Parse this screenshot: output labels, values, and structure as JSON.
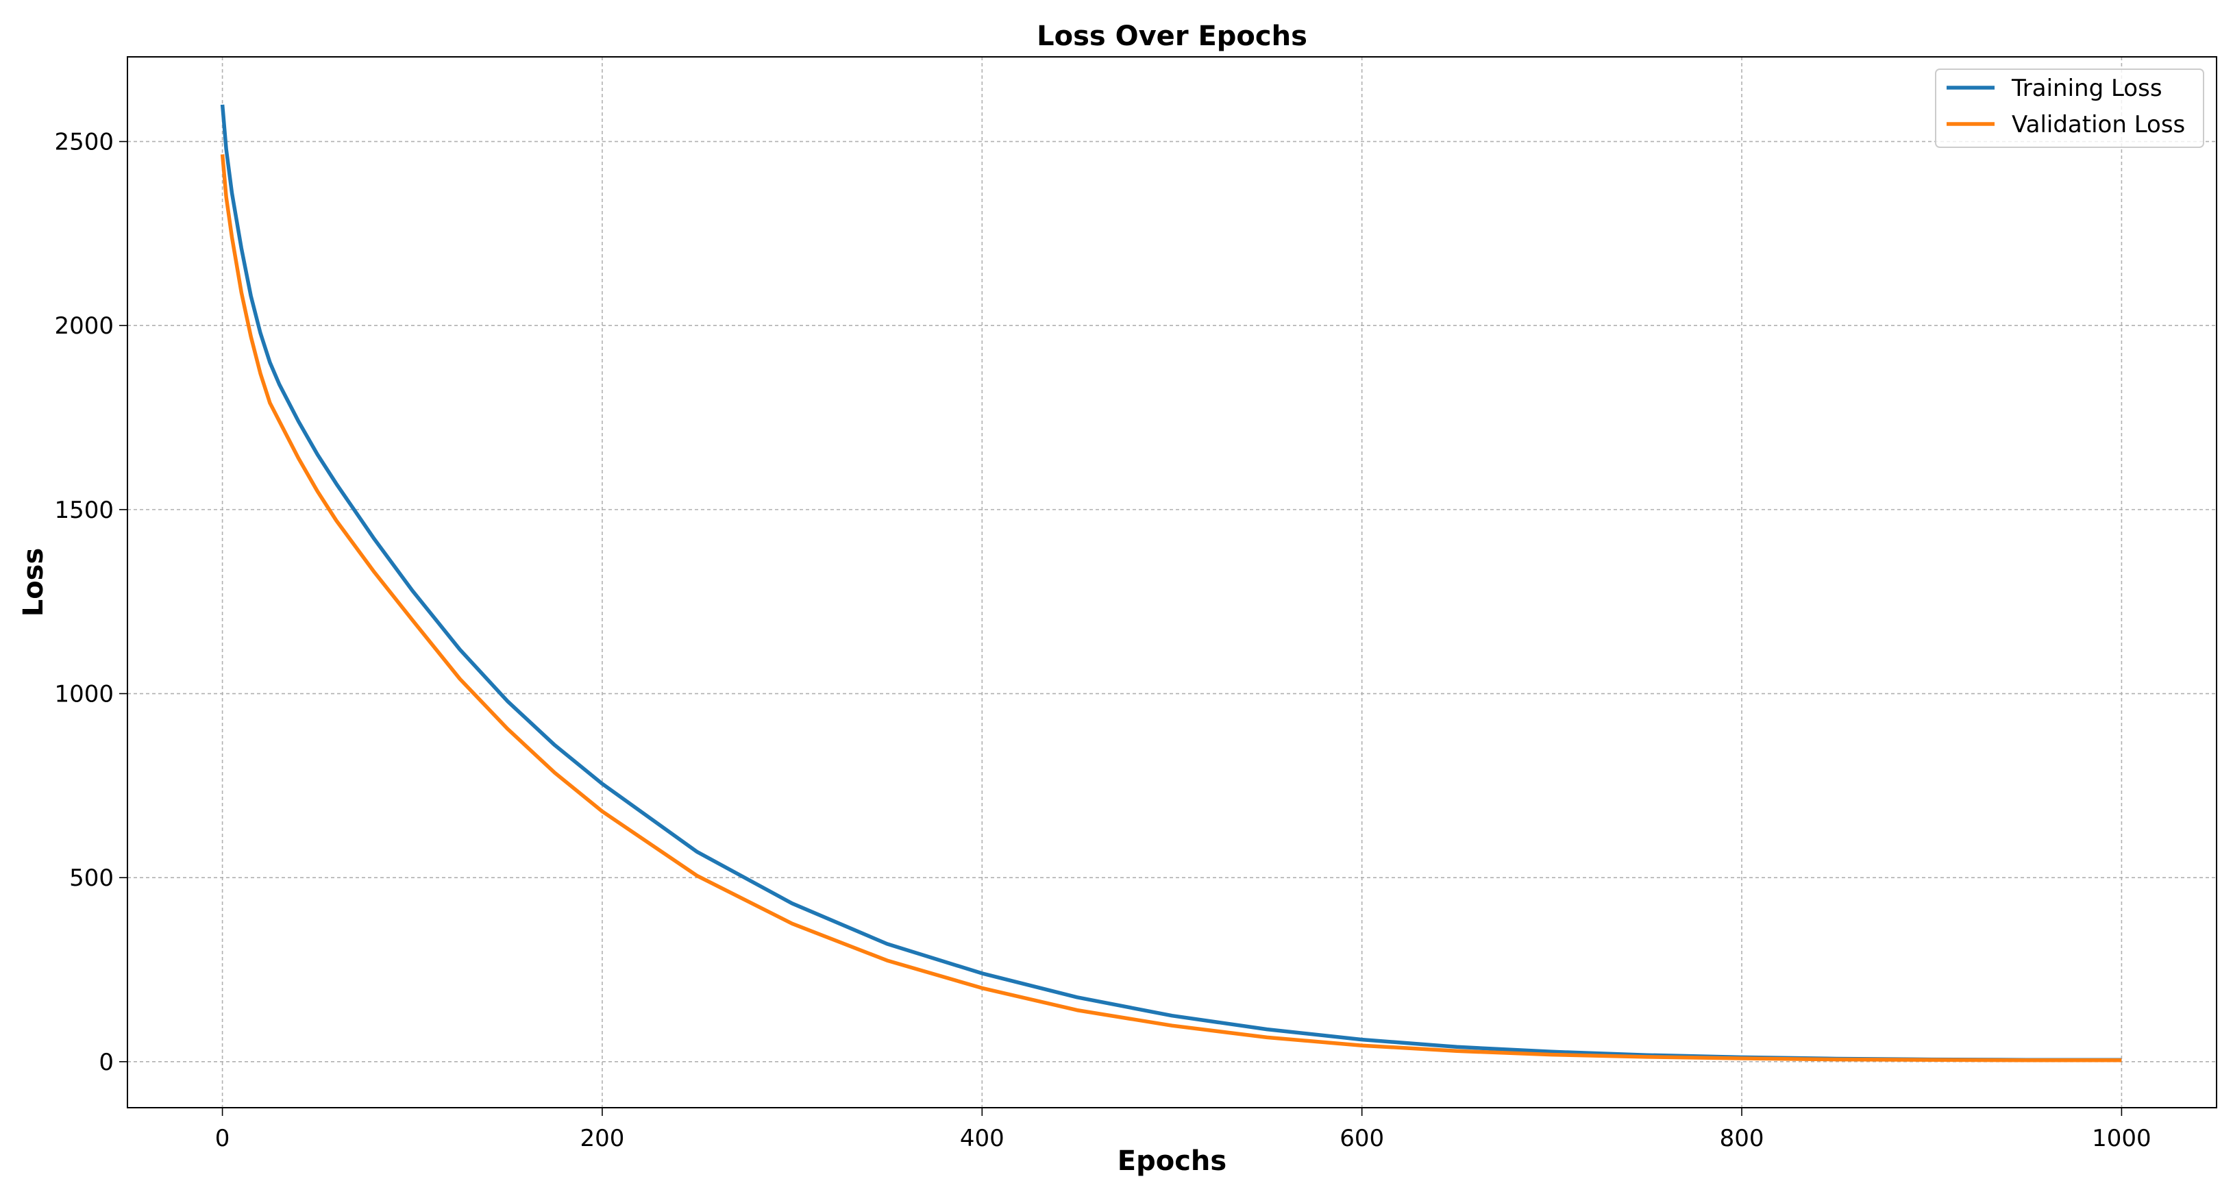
{
  "chart_data": {
    "type": "line",
    "title": "Loss Over Epochs",
    "xlabel": "Epochs",
    "ylabel": "Loss",
    "xlim": [
      -50,
      1050
    ],
    "ylim": [
      -125,
      2730
    ],
    "xticks": [
      0,
      200,
      400,
      600,
      800,
      1000
    ],
    "yticks": [
      0,
      500,
      1000,
      1500,
      2000,
      2500
    ],
    "grid": true,
    "legend_position": "top-right",
    "x": [
      0,
      2,
      5,
      10,
      15,
      20,
      25,
      30,
      40,
      50,
      60,
      80,
      100,
      125,
      150,
      175,
      200,
      250,
      300,
      350,
      400,
      450,
      500,
      550,
      600,
      650,
      700,
      750,
      800,
      850,
      900,
      950,
      1000
    ],
    "series": [
      {
        "name": "Training Loss",
        "color": "#1f77b4",
        "values": [
          2600,
          2480,
          2360,
          2210,
          2080,
          1980,
          1900,
          1840,
          1740,
          1650,
          1570,
          1420,
          1280,
          1120,
          980,
          860,
          755,
          570,
          430,
          320,
          240,
          175,
          125,
          88,
          60,
          40,
          27,
          18,
          12,
          8,
          6,
          5,
          5
        ]
      },
      {
        "name": "Validation Loss",
        "color": "#ff7f0e",
        "values": [
          2465,
          2350,
          2240,
          2090,
          1970,
          1870,
          1790,
          1740,
          1640,
          1550,
          1470,
          1330,
          1200,
          1040,
          905,
          785,
          680,
          505,
          375,
          275,
          200,
          140,
          98,
          66,
          44,
          29,
          19,
          13,
          9,
          6,
          5,
          4,
          4
        ]
      }
    ]
  }
}
